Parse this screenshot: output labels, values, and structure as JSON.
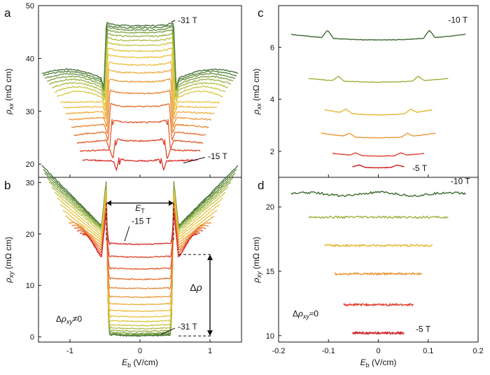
{
  "chart_data": [
    {
      "id": "a",
      "type": "line",
      "panel_label": "a",
      "title": "",
      "xlabel": "",
      "ylabel": "ρxx (mΩ cm)",
      "ylabel_base": "ρ",
      "ylabel_sub": "xx",
      "ylabel_unit": " (mΩ cm)",
      "xlim": [
        -1.45,
        1.45
      ],
      "ylim": [
        17.5,
        50
      ],
      "x_ticks": [
        -1,
        0,
        1
      ],
      "x_tick_labels": [
        "",
        "",
        ""
      ],
      "y_ticks": [
        20,
        30,
        40,
        50
      ],
      "y_tick_labels": [
        "20",
        "30",
        "40",
        "50"
      ],
      "curve_params": {
        "x_range": [
          -1.4,
          1.4
        ],
        "fields_T": [
          -15,
          -16,
          -17,
          -18,
          -19,
          -20,
          -21,
          -22,
          -23,
          -24,
          -25,
          -26,
          -27,
          -28,
          -29,
          -30,
          -31
        ],
        "plateau_values": [
          21.2,
          25.0,
          28.5,
          31.5,
          34.0,
          36.2,
          37.9,
          39.4,
          40.8,
          42.0,
          43.1,
          44.0,
          44.8,
          45.5,
          46.0,
          46.4,
          46.8
        ],
        "threshold_fields": [
          0.3,
          0.35,
          0.4,
          0.42,
          0.43,
          0.44,
          0.45,
          0.45,
          0.46,
          0.46,
          0.47,
          0.47,
          0.47,
          0.47,
          0.47,
          0.48,
          0.48
        ],
        "wing_start_values": [
          20.6,
          22.7,
          24.5,
          26.1,
          27.5,
          28.8,
          29.9,
          30.9,
          31.8,
          32.6,
          33.4,
          34.0,
          34.6,
          35.1,
          35.6,
          36.0,
          36.4
        ],
        "wing_end_values": [
          20.8,
          22.5,
          24.0,
          25.5,
          27.0,
          28.4,
          29.6,
          30.7,
          31.7,
          32.6,
          33.5,
          34.3,
          35.0,
          35.6,
          36.1,
          36.6,
          37.0
        ],
        "x_extent": [
          0.82,
          0.86,
          0.9,
          0.94,
          0.98,
          1.02,
          1.06,
          1.1,
          1.14,
          1.18,
          1.22,
          1.26,
          1.3,
          1.33,
          1.36,
          1.38,
          1.4
        ]
      },
      "annotations": [
        {
          "text": "-31 T",
          "x": 0.52,
          "y": 47.2
        },
        {
          "text": "-15 T",
          "x": 0.95,
          "y": 21.5
        }
      ]
    },
    {
      "id": "b",
      "type": "line",
      "panel_label": "b",
      "title": "",
      "xlabel": "Eb (V/cm)",
      "xlabel_base": "E",
      "xlabel_sub": "b",
      "xlabel_unit": " (V/cm)",
      "ylabel": "ρxy (mΩ cm)",
      "ylabel_base": "ρ",
      "ylabel_sub": "xy",
      "ylabel_unit": " (mΩ cm)",
      "xlim": [
        -1.45,
        1.45
      ],
      "ylim": [
        -1,
        31
      ],
      "x_ticks": [
        -1,
        0,
        1
      ],
      "x_tick_labels": [
        "-1",
        "0",
        "1"
      ],
      "y_ticks": [
        0,
        10,
        20,
        30
      ],
      "y_tick_labels": [
        "0",
        "10",
        "20",
        "30"
      ],
      "curve_params": {
        "fields_T": [
          -15,
          -16,
          -17,
          -18,
          -19,
          -20,
          -21,
          -22,
          -23,
          -24,
          -25,
          -26,
          -27,
          -28,
          -29,
          -30,
          -31
        ],
        "plateau_values": [
          18.0,
          15.5,
          13.2,
          11.2,
          9.4,
          7.7,
          6.3,
          5.0,
          3.9,
          3.0,
          2.2,
          1.6,
          1.1,
          0.7,
          0.45,
          0.3,
          0.2
        ],
        "outer_values": [
          19.5,
          19.8,
          20.3,
          20.8,
          21.3,
          21.8,
          22.3,
          22.8,
          23.3,
          23.8,
          24.3,
          24.7,
          25.0,
          25.2,
          25.4,
          25.5,
          25.6
        ],
        "x_extent": [
          0.82,
          0.86,
          0.9,
          0.94,
          0.98,
          1.02,
          1.06,
          1.1,
          1.14,
          1.18,
          1.22,
          1.26,
          1.3,
          1.33,
          1.36,
          1.38,
          1.4
        ]
      },
      "annotations": [
        {
          "text": "-15 T",
          "x": -0.12,
          "y": 22.5
        },
        {
          "text": "-31 T",
          "x": 0.52,
          "y": 2.0
        },
        {
          "text": "ET",
          "x": 0.0,
          "y": 27.2
        },
        {
          "text": "Δρ",
          "x": 1.0,
          "y": 9.5
        },
        {
          "text": "Δρxy≠0",
          "x": -1.2,
          "y": 3.5
        }
      ]
    },
    {
      "id": "c",
      "type": "line",
      "panel_label": "c",
      "title": "",
      "xlabel": "",
      "ylabel": "ρxx (mΩ cm)",
      "ylabel_base": "ρ",
      "ylabel_sub": "xx",
      "ylabel_unit": " (mΩ cm)",
      "xlim": [
        -0.2,
        0.2
      ],
      "ylim": [
        1.0,
        7.6
      ],
      "x_ticks": [
        -0.2,
        -0.1,
        0,
        0.1,
        0.2
      ],
      "x_tick_labels": [
        "",
        "",
        "",
        "",
        ""
      ],
      "y_ticks": [
        2,
        4,
        6
      ],
      "y_tick_labels": [
        "2",
        "4",
        "6"
      ],
      "series": [
        {
          "field_T": -10,
          "y": 6.5,
          "x_range": [
            -0.175,
            0.175
          ],
          "peak_x": 0.102,
          "peak_h": 0.3,
          "sag": 0.22
        },
        {
          "field_T": -9,
          "y": 4.8,
          "x_range": [
            -0.14,
            0.14
          ],
          "peak_x": 0.08,
          "peak_h": 0.18,
          "sag": 0.14
        },
        {
          "field_T": -8,
          "y": 3.6,
          "x_range": [
            -0.108,
            0.108
          ],
          "peak_x": 0.065,
          "peak_h": 0.15,
          "sag": 0.2
        },
        {
          "field_T": -7,
          "y": 2.7,
          "x_range": [
            -0.115,
            0.115
          ],
          "peak_x": 0.058,
          "peak_h": 0.13,
          "sag": 0.18
        },
        {
          "field_T": -6,
          "y": 1.92,
          "x_range": [
            -0.092,
            0.092
          ],
          "peak_x": 0.045,
          "peak_h": 0.1,
          "sag": 0.1
        },
        {
          "field_T": -5,
          "y": 1.42,
          "x_range": [
            -0.052,
            0.052
          ],
          "peak_x": 0.038,
          "peak_h": 0.08,
          "sag": 0.05
        }
      ],
      "annotations": [
        {
          "text": "-10 T",
          "x": 0.14,
          "y": 7.05
        },
        {
          "text": "-5 T",
          "x": 0.068,
          "y": 1.35
        }
      ]
    },
    {
      "id": "d",
      "type": "line",
      "panel_label": "d",
      "title": "",
      "xlabel": "Eb (V/cm)",
      "xlabel_base": "E",
      "xlabel_sub": "b",
      "xlabel_unit": " (V/cm)",
      "ylabel": "ρxy (mΩ cm)",
      "ylabel_base": "ρ",
      "ylabel_sub": "xy",
      "ylabel_unit": " (mΩ cm)",
      "xlim": [
        -0.2,
        0.2
      ],
      "ylim": [
        9.5,
        22.3
      ],
      "x_ticks": [
        -0.2,
        -0.1,
        0,
        0.1,
        0.2
      ],
      "x_tick_labels": [
        "-0.2",
        "-0.1",
        "0",
        "0.1",
        "0.2"
      ],
      "y_ticks": [
        10,
        15,
        20
      ],
      "y_tick_labels": [
        "10",
        "15",
        "20"
      ],
      "series": [
        {
          "field_T": -10,
          "y": 21.0,
          "x_range": [
            -0.175,
            0.175
          ]
        },
        {
          "field_T": -9,
          "y": 19.2,
          "x_range": [
            -0.14,
            0.14
          ]
        },
        {
          "field_T": -8,
          "y": 17.0,
          "x_range": [
            -0.108,
            0.108
          ]
        },
        {
          "field_T": -7,
          "y": 14.8,
          "x_range": [
            -0.088,
            0.088
          ]
        },
        {
          "field_T": -6,
          "y": 12.4,
          "x_range": [
            -0.07,
            0.07
          ]
        },
        {
          "field_T": -5,
          "y": 10.2,
          "x_range": [
            -0.052,
            0.052
          ]
        }
      ],
      "annotations": [
        {
          "text": "-10 T",
          "x": 0.145,
          "y": 22.0
        },
        {
          "text": "-5 T",
          "x": 0.075,
          "y": 10.5
        },
        {
          "text": "Δρxy≈0",
          "x": -0.172,
          "y": 11.7
        }
      ]
    }
  ],
  "colors": {
    "ramp": [
      "#d7302c",
      "#de4a2e",
      "#e25d31",
      "#e57234",
      "#e88737",
      "#eb9b3a",
      "#edad3d",
      "#eebd40",
      "#eac541",
      "#dcc744",
      "#c8c445",
      "#b0bc45",
      "#97b043",
      "#7ea240",
      "#66913c",
      "#517f37",
      "#3e6b31"
    ],
    "six": [
      "#3e6b31",
      "#9bb43e",
      "#e6b734",
      "#e99a3a",
      "#e1483a",
      "#cf2a2c"
    ]
  }
}
